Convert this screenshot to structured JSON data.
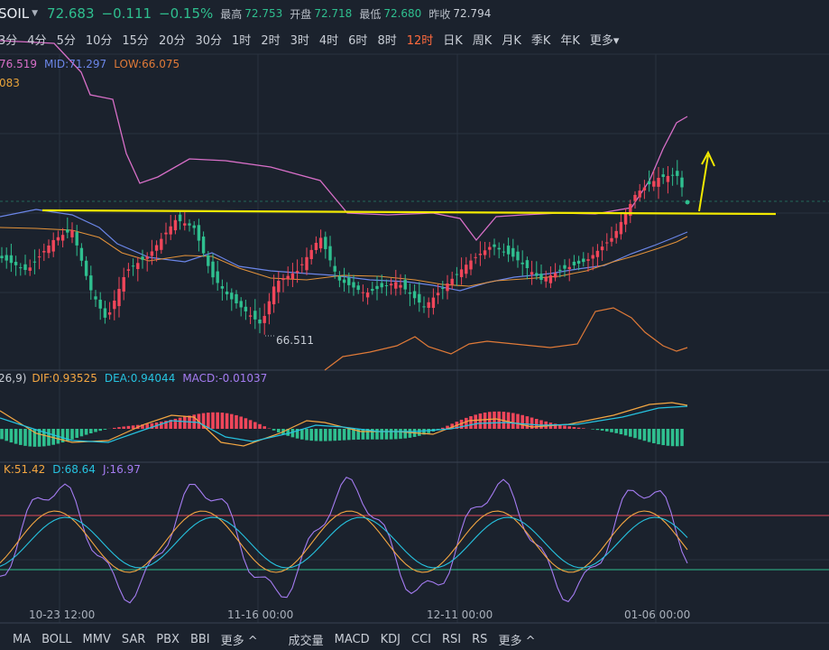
{
  "quote": {
    "symbol": "SOIL",
    "price": "72.683",
    "change": "−0.111",
    "change_pct": "−0.15%",
    "high_label": "最高",
    "high": "72.753",
    "open_label": "开盘",
    "open": "72.718",
    "low_label": "最低",
    "low": "72.680",
    "prev_label": "昨收",
    "prev": "72.794"
  },
  "periods": [
    "3分",
    "4分",
    "5分",
    "10分",
    "15分",
    "20分",
    "30分",
    "1时",
    "2时",
    "3时",
    "4时",
    "6时",
    "8时",
    "12时",
    "日K",
    "周K",
    "月K",
    "季K",
    "年K",
    "更多"
  ],
  "active_period": "12时",
  "boll": {
    "up": "76.519",
    "mid_label": "MID:",
    "mid": "71.297",
    "low_label": "LOW:",
    "low": "66.075",
    "extra": "083"
  },
  "min_marker": "66.511",
  "macd": {
    "params": "26,9)",
    "dif_label": "DIF:",
    "dif": "0.93525",
    "dea_label": "DEA:",
    "dea": "0.94044",
    "macd_label": "MACD:",
    "macd": "-0.01037"
  },
  "kdj": {
    "k_label": "K:",
    "k": "51.42",
    "d_label": "D:",
    "d": "68.64",
    "j_label": "J:",
    "j": "16.97"
  },
  "dates": [
    "10-23 12:00",
    "11-16 00:00",
    "12-11 00:00",
    "01-06 00:00"
  ],
  "bottom_tabs": [
    "MA",
    "BOLL",
    "MMV",
    "SAR",
    "PBX",
    "BBI",
    "更多",
    "成交量",
    "MACD",
    "KDJ",
    "CCI",
    "RSI",
    "RS",
    "更多"
  ],
  "colors": {
    "up": "#f0465a",
    "down": "#2fbf8f",
    "upper": "#d86fc8",
    "mid": "#6b86e8",
    "lower": "#e07a38",
    "trend": "#f2e900",
    "dif": "#f4a742",
    "dea": "#26c3e0",
    "j": "#a57cf2"
  }
}
